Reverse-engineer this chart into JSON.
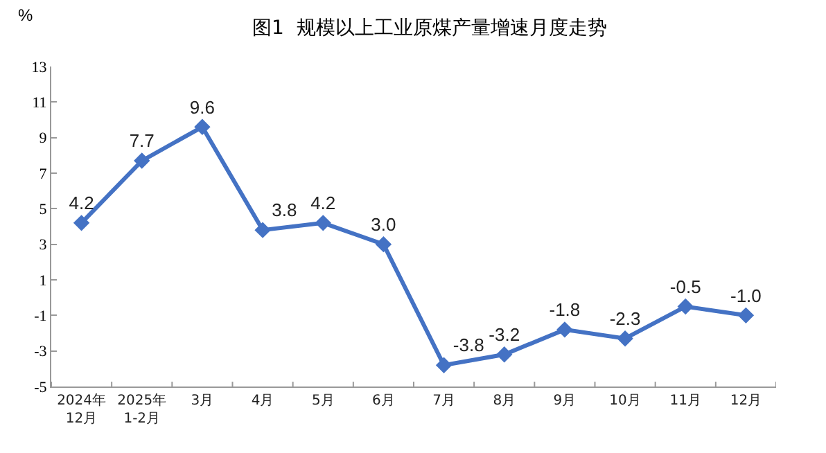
{
  "chart_data": {
    "type": "line",
    "title": "图1  规模以上工业原煤产量增速月度走势",
    "ylabel": "%",
    "categories": [
      "2024年\n12月",
      "2025年\n1-2月",
      "3月",
      "4月",
      "5月",
      "6月",
      "7月",
      "8月",
      "9月",
      "10月",
      "11月",
      "12月"
    ],
    "series": [
      {
        "color": "#4472c4",
        "values": [
          4.2,
          7.7,
          9.6,
          3.8,
          4.2,
          3.0,
          -3.8,
          -3.2,
          -1.8,
          -2.3,
          -0.5,
          -1.0
        ],
        "value_labels": [
          "4.2",
          "7.7",
          "9.6",
          "3.8",
          "4.2",
          "3.0",
          "-3.8",
          "-3.2",
          "-1.8",
          "-2.3",
          "-0.5",
          "-1.0"
        ]
      }
    ],
    "ylim": [
      -5,
      13
    ],
    "yticks": [
      13,
      11,
      9,
      7,
      5,
      3,
      1,
      -1,
      -3,
      -5
    ],
    "grid": false,
    "marker": "diamond",
    "line_style": "solid"
  }
}
